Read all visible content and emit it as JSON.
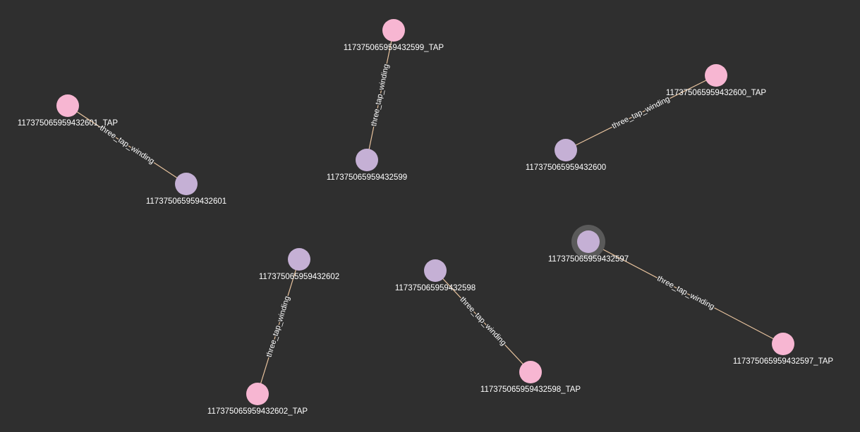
{
  "colors": {
    "background": "#2f2f2f",
    "tap_node": "#f7b6d2",
    "winding_node": "#c5b0d5",
    "edge": "#e8c39e",
    "selection_halo": "#5a5a5a"
  },
  "nodes": [
    {
      "id": "117375065959432599_TAP",
      "label": "117375065959432599_TAP",
      "kind": "tap"
    },
    {
      "id": "117375065959432599",
      "label": "117375065959432599",
      "kind": "winding"
    },
    {
      "id": "117375065959432600_TAP",
      "label": "117375065959432600_TAP",
      "kind": "tap"
    },
    {
      "id": "117375065959432600",
      "label": "117375065959432600",
      "kind": "winding"
    },
    {
      "id": "117375065959432601_TAP",
      "label": "117375065959432601_TAP",
      "kind": "tap"
    },
    {
      "id": "117375065959432601",
      "label": "117375065959432601",
      "kind": "winding"
    },
    {
      "id": "117375065959432602",
      "label": "117375065959432602",
      "kind": "winding"
    },
    {
      "id": "117375065959432602_TAP",
      "label": "117375065959432602_TAP",
      "kind": "tap"
    },
    {
      "id": "117375065959432598",
      "label": "117375065959432598",
      "kind": "winding"
    },
    {
      "id": "117375065959432598_TAP",
      "label": "117375065959432598_TAP",
      "kind": "tap"
    },
    {
      "id": "117375065959432597",
      "label": "117375065959432597",
      "kind": "winding",
      "selected": true
    },
    {
      "id": "117375065959432597_TAP",
      "label": "117375065959432597_TAP",
      "kind": "tap"
    }
  ],
  "edges": [
    {
      "source": "117375065959432599_TAP",
      "target": "117375065959432599",
      "label": "three_tap_winding"
    },
    {
      "source": "117375065959432600_TAP",
      "target": "117375065959432600",
      "label": "three_tap_winding"
    },
    {
      "source": "117375065959432601_TAP",
      "target": "117375065959432601",
      "label": "three_tap_winding"
    },
    {
      "source": "117375065959432602",
      "target": "117375065959432602_TAP",
      "label": "three_tap_winding"
    },
    {
      "source": "117375065959432598",
      "target": "117375065959432598_TAP",
      "label": "three_tap_winding"
    },
    {
      "source": "117375065959432597",
      "target": "117375065959432597_TAP",
      "label": "three_tap_winding"
    }
  ]
}
